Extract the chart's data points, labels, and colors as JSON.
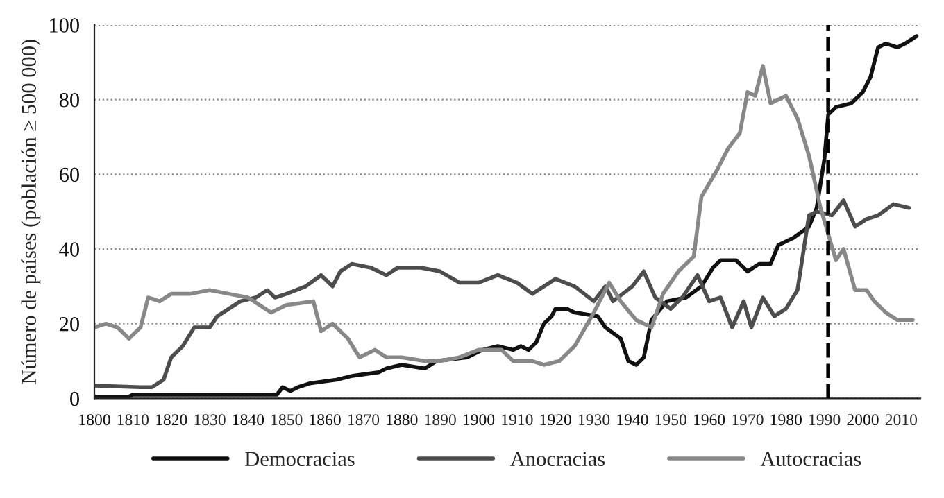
{
  "chart_data": {
    "type": "line",
    "ylabel": "Número de países (población ≥ 500 000)",
    "xlim": [
      1800,
      2015
    ],
    "xticks": [
      1800,
      1810,
      1820,
      1830,
      1840,
      1850,
      1860,
      1870,
      1880,
      1890,
      1900,
      1910,
      1920,
      1930,
      1940,
      1950,
      1960,
      1970,
      1980,
      1990,
      2000,
      2010
    ],
    "ylim": [
      0,
      100
    ],
    "yticks": [
      0,
      20,
      40,
      60,
      80,
      100
    ],
    "grid": "y",
    "legend": "bottom",
    "marker": "none",
    "line_style": "solid",
    "ref_lines": [
      {
        "axis": "x",
        "value": 1991,
        "color": "#000000",
        "line_style": "dashed"
      }
    ],
    "series": [
      {
        "name": "Democracias",
        "color": "#111111",
        "x": [
          1800,
          1809,
          1810,
          1847.5,
          1849,
          1851,
          1853,
          1856,
          1863,
          1867,
          1874,
          1876,
          1880,
          1886,
          1889,
          1897,
          1901,
          1905,
          1909,
          1911,
          1913,
          1915,
          1917,
          1919,
          1920,
          1923,
          1925,
          1931,
          1933,
          1937,
          1939,
          1941,
          1943,
          1945,
          1949,
          1954,
          1958,
          1961,
          1963,
          1967,
          1970,
          1973,
          1976,
          1978,
          1982,
          1986,
          1988,
          1990,
          1991,
          1993,
          1997,
          2000,
          2002,
          2004,
          2006,
          2009,
          2011,
          2014
        ],
        "values": [
          0.5,
          0.5,
          1,
          1,
          3,
          2,
          3,
          4,
          5,
          6,
          7,
          8,
          9,
          8,
          10,
          11,
          13,
          14,
          13,
          14,
          13,
          15,
          20,
          22,
          24,
          24,
          23,
          22,
          19,
          16,
          10,
          9,
          11,
          21,
          26,
          27,
          30,
          35,
          37,
          37,
          34,
          36,
          36,
          41,
          43,
          46,
          51,
          64,
          76,
          78,
          79,
          82,
          86,
          94,
          95,
          94,
          95,
          97
        ]
      },
      {
        "name": "Anocracias",
        "color": "#4d4d4d",
        "x": [
          1800,
          1812,
          1815,
          1818,
          1820,
          1823,
          1826,
          1830,
          1832,
          1835,
          1838,
          1842,
          1845,
          1847,
          1850,
          1855,
          1859,
          1862,
          1864,
          1867,
          1872,
          1876,
          1879,
          1885,
          1890,
          1895,
          1900,
          1905,
          1910,
          1914,
          1920,
          1925,
          1930,
          1933,
          1935,
          1940,
          1943,
          1946,
          1950,
          1953,
          1957,
          1960,
          1963,
          1966,
          1969,
          1971,
          1974,
          1977,
          1980,
          1983,
          1986,
          1988,
          1992,
          1995,
          1998,
          2001,
          2004,
          2008,
          2012
        ],
        "values": [
          3.4,
          3,
          3,
          5,
          11,
          14,
          19,
          19,
          22,
          24,
          26,
          27,
          29,
          27,
          28,
          30,
          33,
          30,
          34,
          36,
          35,
          33,
          35,
          35,
          34,
          31,
          31,
          33,
          31,
          28,
          32,
          30,
          26,
          30,
          26,
          30,
          34,
          27,
          24,
          27,
          33,
          26,
          27,
          19,
          26,
          19,
          27,
          22,
          24,
          29,
          49,
          50,
          49,
          53,
          46,
          48,
          49,
          52,
          51
        ]
      },
      {
        "name": "Autocracias",
        "color": "#888888",
        "x": [
          1800,
          1803,
          1806,
          1809,
          1812,
          1814,
          1817,
          1820,
          1825,
          1830,
          1835,
          1840,
          1846,
          1850,
          1857,
          1859,
          1862,
          1866,
          1869,
          1873,
          1876,
          1880,
          1886,
          1890,
          1895,
          1900,
          1906,
          1909,
          1914,
          1917,
          1921,
          1925,
          1930,
          1934,
          1937,
          1941,
          1945,
          1948,
          1952,
          1956,
          1958,
          1962,
          1965,
          1968,
          1970,
          1972,
          1974,
          1976,
          1980,
          1983,
          1986,
          1989,
          1991,
          1993,
          1995,
          1998,
          2001,
          2003,
          2006,
          2009,
          2013
        ],
        "values": [
          19,
          20,
          19,
          16,
          19,
          27,
          26,
          28,
          28,
          29,
          28,
          27,
          23,
          25,
          26,
          18,
          20,
          16,
          11,
          13,
          11,
          11,
          10,
          10,
          11,
          13,
          13,
          10,
          10,
          9,
          10,
          14,
          23,
          31,
          26,
          21,
          19,
          28,
          34,
          38,
          54,
          61,
          67,
          71,
          82,
          81,
          89,
          79,
          81,
          75,
          65,
          51,
          44,
          37,
          40,
          29,
          29,
          26,
          23,
          21,
          21
        ]
      }
    ]
  }
}
